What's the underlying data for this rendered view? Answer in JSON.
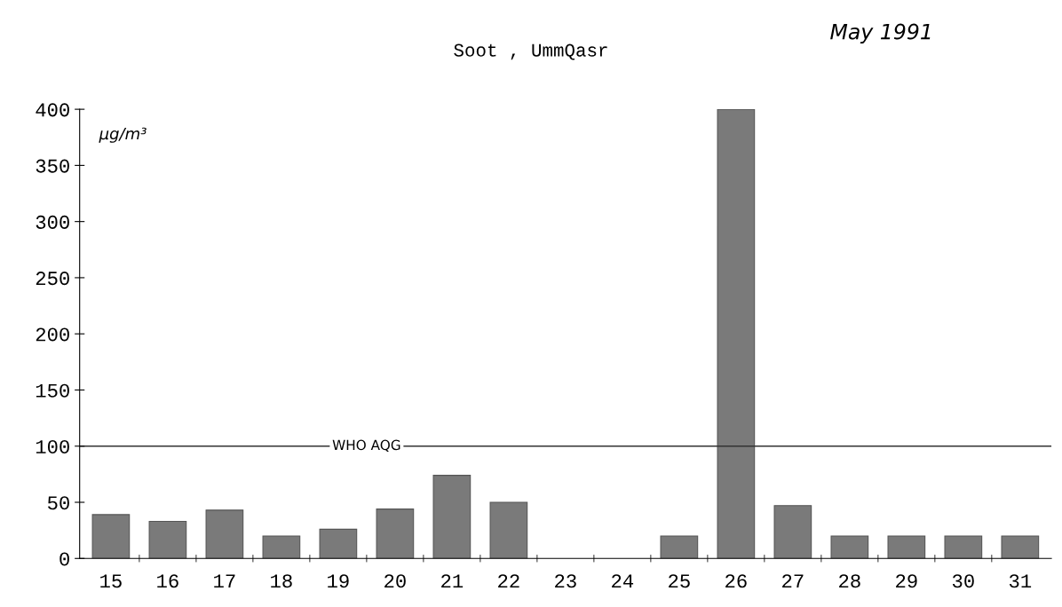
{
  "chart_data": {
    "type": "bar",
    "title": "Soot , UmmQasr",
    "ylabel": "µg/m³",
    "annotations": [
      "May 1991"
    ],
    "categories": [
      "15",
      "16",
      "17",
      "18",
      "19",
      "20",
      "21",
      "22",
      "23",
      "24",
      "25",
      "26",
      "27",
      "28",
      "29",
      "30",
      "31"
    ],
    "values": [
      39,
      33,
      43,
      20,
      26,
      44,
      74,
      50,
      null,
      null,
      20,
      400,
      47,
      20,
      20,
      20,
      20
    ],
    "color": "#7a7a7a",
    "ylim": [
      0,
      400
    ],
    "yticks": [
      0,
      50,
      100,
      150,
      200,
      250,
      300,
      350,
      400
    ],
    "grid": false,
    "legend": false,
    "ref_lines": [
      {
        "axis": "y",
        "value": 100,
        "label": "WHO AQG",
        "color": "#333333",
        "line_style": "solid"
      }
    ]
  }
}
